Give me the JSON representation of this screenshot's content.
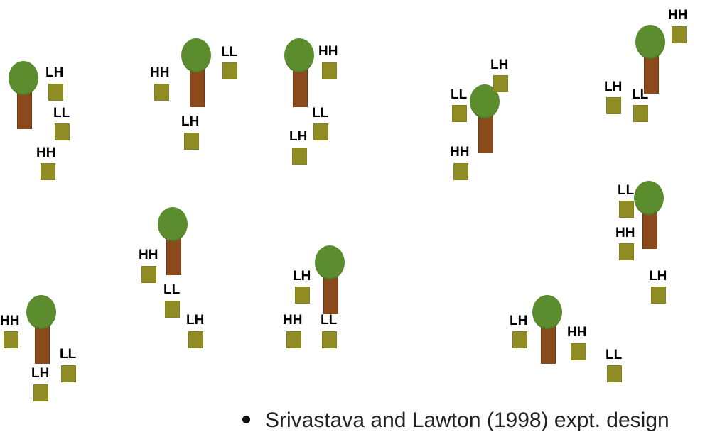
{
  "diagram": {
    "colors": {
      "crown": "#5b8c2e",
      "trunk": "#8a4a1c",
      "plot": "#8f8c23",
      "label": "#000000"
    },
    "plots": [
      {
        "label": "LH"
      },
      {
        "label": "LL"
      },
      {
        "label": "HH"
      },
      {
        "label": "HH"
      },
      {
        "label": "LL"
      },
      {
        "label": "LH"
      },
      {
        "label": "HH"
      },
      {
        "label": "LL"
      },
      {
        "label": "LH"
      },
      {
        "label": "LH"
      },
      {
        "label": "LL"
      },
      {
        "label": "HH"
      },
      {
        "label": "HH"
      },
      {
        "label": "LH"
      },
      {
        "label": "LL"
      },
      {
        "label": "LL"
      },
      {
        "label": "HH"
      },
      {
        "label": "LH"
      },
      {
        "label": "HH"
      },
      {
        "label": "LL"
      },
      {
        "label": "LH"
      },
      {
        "label": "LH"
      },
      {
        "label": "HH"
      },
      {
        "label": "LL"
      },
      {
        "label": "HH"
      },
      {
        "label": "LH"
      },
      {
        "label": "LL"
      },
      {
        "label": "LH"
      },
      {
        "label": "HH"
      },
      {
        "label": "LL"
      }
    ]
  },
  "caption": {
    "text": "Srivastava and Lawton (1998) expt. design"
  }
}
